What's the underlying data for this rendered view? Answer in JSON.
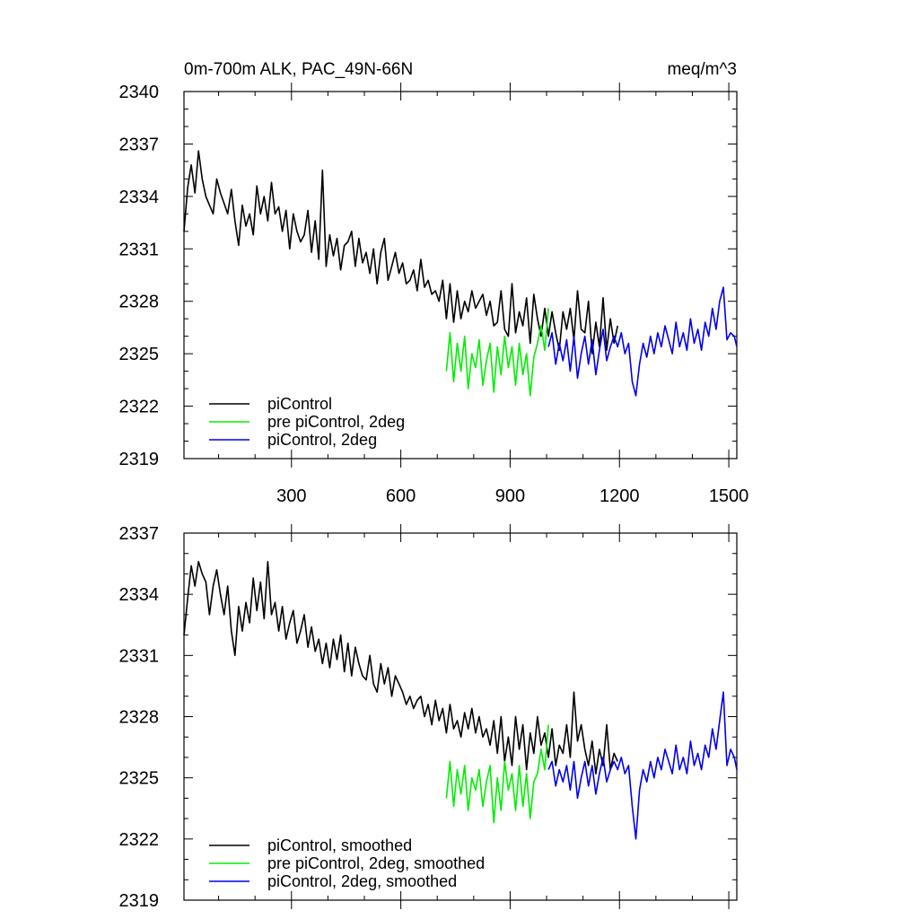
{
  "chart_data": [
    {
      "type": "line",
      "title": "0m-700m ALK, PAC_49N-66N",
      "units": "meq/m^3",
      "xlim": [
        5,
        1522
      ],
      "ylim": [
        2319,
        2340
      ],
      "xticks": [
        300,
        600,
        900,
        1200,
        1500
      ],
      "yticks": [
        2319,
        2322,
        2325,
        2328,
        2331,
        2334,
        2337,
        2340
      ],
      "legend_position": "bottom-left",
      "series": [
        {
          "name": "piControl",
          "color": "#000000",
          "x": [
            5,
            15,
            25,
            35,
            45,
            55,
            65,
            75,
            85,
            95,
            105,
            115,
            125,
            135,
            145,
            155,
            165,
            175,
            185,
            195,
            205,
            215,
            225,
            235,
            245,
            255,
            265,
            275,
            285,
            295,
            305,
            315,
            325,
            335,
            345,
            355,
            365,
            375,
            385,
            395,
            405,
            415,
            425,
            435,
            445,
            455,
            465,
            475,
            485,
            495,
            505,
            515,
            525,
            535,
            545,
            555,
            565,
            575,
            585,
            595,
            605,
            615,
            625,
            635,
            645,
            655,
            665,
            675,
            685,
            695,
            705,
            715,
            725,
            735,
            745,
            755,
            765,
            775,
            785,
            795,
            805,
            815,
            825,
            835,
            845,
            855,
            865,
            875,
            885,
            895,
            905,
            915,
            925,
            935,
            945,
            955,
            965,
            975,
            985,
            995,
            1005,
            1015,
            1025,
            1035,
            1045,
            1055,
            1065,
            1075,
            1085,
            1095,
            1105,
            1115,
            1125,
            1135,
            1145,
            1155,
            1165,
            1175,
            1185,
            1195
          ],
          "y": [
            2332.0,
            2334.5,
            2335.8,
            2334.2,
            2336.6,
            2335.0,
            2334.0,
            2333.5,
            2333.0,
            2335.0,
            2334.2,
            2333.6,
            2333.0,
            2334.4,
            2332.6,
            2331.2,
            2333.5,
            2332.3,
            2333.0,
            2331.8,
            2334.6,
            2333.0,
            2334.0,
            2332.6,
            2334.8,
            2333.0,
            2333.4,
            2332.0,
            2333.2,
            2331.0,
            2333.0,
            2332.0,
            2331.4,
            2331.8,
            2333.2,
            2330.8,
            2332.6,
            2330.4,
            2335.5,
            2330.0,
            2331.8,
            2330.6,
            2331.6,
            2329.8,
            2331.2,
            2331.4,
            2332.0,
            2330.0,
            2331.6,
            2330.2,
            2330.8,
            2329.6,
            2331.0,
            2329.0,
            2330.8,
            2331.6,
            2329.2,
            2330.0,
            2330.8,
            2329.6,
            2330.2,
            2329.0,
            2329.2,
            2329.8,
            2328.6,
            2330.4,
            2328.8,
            2329.2,
            2328.4,
            2328.6,
            2328.0,
            2329.2,
            2327.0,
            2329.0,
            2326.8,
            2328.6,
            2327.0,
            2328.0,
            2327.4,
            2328.6,
            2327.6,
            2328.0,
            2328.4,
            2327.2,
            2328.0,
            2326.6,
            2326.8,
            2328.6,
            2326.4,
            2326.0,
            2329.0,
            2326.2,
            2327.4,
            2326.6,
            2328.2,
            2325.6,
            2328.4,
            2327.0,
            2326.0,
            2327.6,
            2326.0,
            2327.4,
            2326.2,
            2325.2,
            2327.4,
            2326.4,
            2327.6,
            2325.8,
            2328.6,
            2326.4,
            2326.2,
            2328.0,
            2325.0,
            2326.8,
            2325.4,
            2328.2,
            2325.2,
            2327.0,
            2325.6,
            2326.6
          ]
        },
        {
          "name": "pre piControl, 2deg",
          "color": "#00ee00",
          "x": [
            725,
            735,
            745,
            755,
            765,
            775,
            785,
            795,
            805,
            815,
            825,
            835,
            845,
            855,
            865,
            875,
            885,
            895,
            905,
            915,
            925,
            935,
            945,
            955,
            965,
            975,
            985,
            995,
            1005
          ],
          "y": [
            2324.0,
            2326.2,
            2323.4,
            2325.6,
            2324.0,
            2326.0,
            2323.0,
            2325.0,
            2324.2,
            2325.8,
            2323.2,
            2324.6,
            2325.6,
            2322.8,
            2325.4,
            2323.8,
            2326.0,
            2324.2,
            2325.4,
            2323.2,
            2325.6,
            2323.8,
            2325.0,
            2322.6,
            2324.8,
            2325.6,
            2326.6,
            2325.2,
            2327.6
          ]
        },
        {
          "name": "piControl, 2deg",
          "color": "#0000ee",
          "x": [
            1005,
            1015,
            1025,
            1035,
            1045,
            1055,
            1065,
            1075,
            1085,
            1095,
            1105,
            1115,
            1125,
            1135,
            1145,
            1155,
            1165,
            1175,
            1185,
            1195,
            1205,
            1215,
            1225,
            1235,
            1245,
            1255,
            1265,
            1275,
            1285,
            1295,
            1305,
            1315,
            1325,
            1335,
            1345,
            1355,
            1365,
            1375,
            1385,
            1395,
            1405,
            1415,
            1425,
            1435,
            1445,
            1455,
            1465,
            1475,
            1485,
            1495,
            1505,
            1515,
            1522
          ],
          "y": [
            2325.4,
            2326.2,
            2324.4,
            2325.6,
            2324.6,
            2325.8,
            2324.0,
            2326.0,
            2323.6,
            2325.0,
            2326.0,
            2324.4,
            2325.8,
            2323.8,
            2325.2,
            2326.4,
            2324.6,
            2325.4,
            2326.0,
            2325.4,
            2326.2,
            2325.0,
            2325.6,
            2323.4,
            2322.6,
            2324.4,
            2325.6,
            2324.8,
            2326.0,
            2325.0,
            2326.2,
            2325.4,
            2326.6,
            2325.8,
            2325.0,
            2326.8,
            2325.4,
            2326.2,
            2325.2,
            2327.0,
            2325.6,
            2326.4,
            2325.2,
            2326.8,
            2326.0,
            2327.6,
            2326.4,
            2328.0,
            2328.8,
            2325.8,
            2326.2,
            2326.0,
            2325.4
          ]
        }
      ]
    },
    {
      "type": "line",
      "xlim": [
        5,
        1522
      ],
      "ylim": [
        2319,
        2337
      ],
      "xticks": [
        300,
        600,
        900,
        1200,
        1500
      ],
      "yticks": [
        2319,
        2322,
        2325,
        2328,
        2331,
        2334,
        2337
      ],
      "legend_position": "bottom-left",
      "series": [
        {
          "name": "piControl, smoothed",
          "color": "#000000",
          "x": [
            5,
            15,
            25,
            35,
            45,
            55,
            65,
            75,
            85,
            95,
            105,
            115,
            125,
            135,
            145,
            155,
            165,
            175,
            185,
            195,
            205,
            215,
            225,
            235,
            245,
            255,
            265,
            275,
            285,
            295,
            305,
            315,
            325,
            335,
            345,
            355,
            365,
            375,
            385,
            395,
            405,
            415,
            425,
            435,
            445,
            455,
            465,
            475,
            485,
            495,
            505,
            515,
            525,
            535,
            545,
            555,
            565,
            575,
            585,
            595,
            605,
            615,
            625,
            635,
            645,
            655,
            665,
            675,
            685,
            695,
            705,
            715,
            725,
            735,
            745,
            755,
            765,
            775,
            785,
            795,
            805,
            815,
            825,
            835,
            845,
            855,
            865,
            875,
            885,
            895,
            905,
            915,
            925,
            935,
            945,
            955,
            965,
            975,
            985,
            995,
            1005,
            1015,
            1025,
            1035,
            1045,
            1055,
            1065,
            1075,
            1085,
            1095,
            1105,
            1115,
            1125,
            1135,
            1145,
            1155,
            1165,
            1175,
            1185,
            1195
          ],
          "y": [
            2332.0,
            2333.8,
            2335.4,
            2334.4,
            2335.6,
            2335.0,
            2334.6,
            2333.0,
            2334.4,
            2335.2,
            2334.0,
            2333.0,
            2334.4,
            2332.2,
            2331.0,
            2333.4,
            2332.2,
            2333.6,
            2332.6,
            2334.8,
            2333.2,
            2334.6,
            2332.8,
            2335.6,
            2333.0,
            2333.6,
            2332.2,
            2333.4,
            2331.8,
            2332.6,
            2333.2,
            2331.6,
            2332.2,
            2333.0,
            2331.4,
            2332.4,
            2331.2,
            2331.8,
            2330.6,
            2331.6,
            2330.4,
            2331.8,
            2330.8,
            2332.0,
            2330.2,
            2331.6,
            2330.0,
            2331.4,
            2330.6,
            2330.0,
            2329.8,
            2331.0,
            2329.6,
            2329.2,
            2330.6,
            2329.6,
            2330.4,
            2329.0,
            2330.0,
            2329.6,
            2329.2,
            2328.6,
            2329.0,
            2328.4,
            2328.8,
            2329.0,
            2328.0,
            2328.6,
            2327.6,
            2328.8,
            2327.8,
            2328.4,
            2327.2,
            2328.6,
            2327.4,
            2327.8,
            2327.0,
            2328.2,
            2327.4,
            2328.4,
            2327.2,
            2328.0,
            2327.0,
            2327.4,
            2326.6,
            2327.8,
            2326.2,
            2328.0,
            2325.8,
            2327.0,
            2325.6,
            2328.0,
            2326.4,
            2327.6,
            2325.4,
            2327.2,
            2326.2,
            2328.0,
            2326.6,
            2327.2,
            2326.0,
            2327.4,
            2325.6,
            2326.6,
            2326.2,
            2327.6,
            2326.0,
            2329.2,
            2326.8,
            2327.6,
            2326.4,
            2325.6,
            2326.8,
            2325.2,
            2326.4,
            2325.6,
            2327.6,
            2325.4,
            2326.2,
            2325.8
          ]
        },
        {
          "name": "pre piControl, 2deg, smoothed",
          "color": "#00ee00",
          "x": [
            725,
            735,
            745,
            755,
            765,
            775,
            785,
            795,
            805,
            815,
            825,
            835,
            845,
            855,
            865,
            875,
            885,
            895,
            905,
            915,
            925,
            935,
            945,
            955,
            965,
            975,
            985,
            995,
            1005
          ],
          "y": [
            2324.0,
            2325.8,
            2323.6,
            2325.4,
            2324.2,
            2325.6,
            2323.4,
            2325.0,
            2324.4,
            2325.4,
            2323.6,
            2324.8,
            2325.6,
            2322.8,
            2325.0,
            2323.4,
            2325.8,
            2324.4,
            2325.2,
            2323.4,
            2325.6,
            2323.6,
            2325.2,
            2323.0,
            2324.8,
            2325.2,
            2326.4,
            2325.4,
            2327.6
          ]
        },
        {
          "name": "piControl, 2deg, smoothed",
          "color": "#0000ee",
          "x": [
            1005,
            1015,
            1025,
            1035,
            1045,
            1055,
            1065,
            1075,
            1085,
            1095,
            1105,
            1115,
            1125,
            1135,
            1145,
            1155,
            1165,
            1175,
            1185,
            1195,
            1205,
            1215,
            1225,
            1235,
            1245,
            1255,
            1265,
            1275,
            1285,
            1295,
            1305,
            1315,
            1325,
            1335,
            1345,
            1355,
            1365,
            1375,
            1385,
            1395,
            1405,
            1415,
            1425,
            1435,
            1445,
            1455,
            1465,
            1475,
            1485,
            1495,
            1505,
            1515,
            1522
          ],
          "y": [
            2325.4,
            2325.8,
            2324.6,
            2325.4,
            2324.8,
            2325.6,
            2324.4,
            2325.8,
            2324.0,
            2325.0,
            2325.8,
            2324.6,
            2325.6,
            2324.2,
            2325.2,
            2326.0,
            2324.8,
            2325.4,
            2325.8,
            2325.4,
            2326.0,
            2325.2,
            2325.6,
            2323.6,
            2322.0,
            2324.4,
            2325.4,
            2324.8,
            2325.8,
            2325.0,
            2326.0,
            2325.4,
            2326.4,
            2325.8,
            2325.2,
            2326.6,
            2325.4,
            2326.0,
            2325.2,
            2326.8,
            2325.6,
            2326.2,
            2325.4,
            2326.6,
            2326.0,
            2327.4,
            2326.4,
            2327.8,
            2329.2,
            2325.6,
            2326.4,
            2326.0,
            2325.4
          ]
        }
      ]
    }
  ]
}
